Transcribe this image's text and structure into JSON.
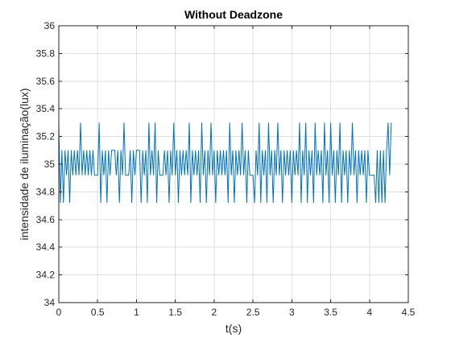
{
  "chart_data": {
    "type": "line",
    "title": "Without Deadzone",
    "xlabel": "t(s)",
    "ylabel": "intensidade de iluminação(lux)",
    "xlim": [
      0,
      4.5
    ],
    "ylim": [
      34,
      36
    ],
    "xticks": [
      0,
      0.5,
      1,
      1.5,
      2,
      2.5,
      3,
      3.5,
      4,
      4.5
    ],
    "yticks": [
      34,
      34.2,
      34.4,
      34.6,
      34.8,
      35,
      35.2,
      35.4,
      35.6,
      35.8,
      36
    ],
    "xtick_labels": [
      "0",
      "0.5",
      "1",
      "1.5",
      "2",
      "2.5",
      "3",
      "3.5",
      "4",
      "4.5"
    ],
    "ytick_labels": [
      "34",
      "34.2",
      "34.4",
      "34.6",
      "34.8",
      "35",
      "35.2",
      "35.4",
      "35.6",
      "35.8",
      "36"
    ],
    "grid": true,
    "colors": {
      "line": "#0072BD",
      "grid": "#DFDFDF",
      "axis": "#262626"
    },
    "series": [
      {
        "x": [
          0,
          0.02,
          0.04,
          0.06,
          0.08,
          0.1,
          0.12,
          0.14,
          0.16,
          0.18,
          0.2,
          0.22,
          0.24,
          0.26,
          0.28,
          0.3,
          0.32,
          0.34,
          0.36,
          0.38,
          0.4,
          0.42,
          0.44,
          0.46,
          0.48,
          0.5,
          0.52,
          0.54,
          0.56,
          0.58,
          0.6,
          0.62,
          0.64,
          0.66,
          0.68,
          0.7,
          0.72,
          0.74,
          0.76,
          0.78,
          0.8,
          0.82,
          0.84,
          0.86,
          0.88,
          0.9,
          0.92,
          0.94,
          0.96,
          0.98,
          1,
          1.02,
          1.04,
          1.06,
          1.08,
          1.1,
          1.12,
          1.14,
          1.16,
          1.18,
          1.2,
          1.22,
          1.24,
          1.26,
          1.28,
          1.3,
          1.32,
          1.34,
          1.36,
          1.38,
          1.4,
          1.42,
          1.44,
          1.46,
          1.48,
          1.5,
          1.52,
          1.54,
          1.56,
          1.58,
          1.6,
          1.62,
          1.64,
          1.66,
          1.68,
          1.7,
          1.72,
          1.74,
          1.76,
          1.78,
          1.8,
          1.82,
          1.84,
          1.86,
          1.88,
          1.9,
          1.92,
          1.94,
          1.96,
          1.98,
          2,
          2.02,
          2.04,
          2.06,
          2.08,
          2.1,
          2.12,
          2.14,
          2.16,
          2.18,
          2.2,
          2.22,
          2.24,
          2.26,
          2.28,
          2.3,
          2.32,
          2.34,
          2.36,
          2.38,
          2.4,
          2.42,
          2.44,
          2.46,
          2.48,
          2.5,
          2.52,
          2.54,
          2.56,
          2.58,
          2.6,
          2.62,
          2.64,
          2.66,
          2.68,
          2.7,
          2.72,
          2.74,
          2.76,
          2.78,
          2.8,
          2.82,
          2.84,
          2.86,
          2.88,
          2.9,
          2.92,
          2.94,
          2.96,
          2.98,
          3,
          3.02,
          3.04,
          3.06,
          3.08,
          3.1,
          3.12,
          3.14,
          3.16,
          3.18,
          3.2,
          3.22,
          3.24,
          3.26,
          3.28,
          3.3,
          3.32,
          3.34,
          3.36,
          3.38,
          3.4,
          3.42,
          3.44,
          3.46,
          3.48,
          3.5,
          3.52,
          3.54,
          3.56,
          3.58,
          3.6,
          3.62,
          3.64,
          3.66,
          3.68,
          3.7,
          3.72,
          3.74,
          3.76,
          3.78,
          3.8,
          3.82,
          3.84,
          3.86,
          3.88,
          3.9,
          3.92,
          3.94,
          3.96,
          3.98,
          4,
          4.02,
          4.04,
          4.06,
          4.08,
          4.1,
          4.12,
          4.14,
          4.16,
          4.18,
          4.2,
          4.22,
          4.24,
          4.26,
          4.28
        ],
        "y": [
          35.3,
          34.72,
          35.1,
          34.72,
          35.1,
          34.92,
          35.1,
          34.72,
          35.1,
          34.92,
          35.1,
          34.92,
          35.1,
          34.92,
          35.3,
          34.92,
          35.1,
          34.92,
          35.1,
          34.92,
          35.1,
          34.92,
          35.1,
          34.92,
          34.92,
          34.92,
          35.3,
          34.72,
          35.1,
          34.92,
          35.1,
          34.72,
          35.1,
          34.92,
          35.1,
          35.1,
          35.1,
          34.92,
          35.1,
          34.72,
          35.1,
          34.92,
          35.3,
          34.92,
          34.92,
          34.92,
          35.1,
          34.72,
          35.1,
          34.92,
          35.1,
          35.1,
          35.1,
          34.72,
          35.1,
          34.92,
          35.1,
          34.72,
          35.3,
          34.92,
          35.1,
          34.92,
          35.3,
          34.72,
          35.1,
          34.92,
          34.92,
          34.92,
          35.1,
          34.92,
          35.1,
          34.72,
          35.1,
          34.92,
          35.3,
          34.92,
          35.1,
          34.72,
          35.1,
          34.92,
          35.1,
          34.92,
          35.1,
          34.92,
          35.3,
          34.72,
          35.1,
          34.92,
          35.1,
          34.92,
          35.1,
          34.72,
          35.3,
          34.92,
          35.1,
          34.72,
          35.1,
          34.92,
          35.3,
          34.92,
          35.1,
          34.72,
          35.1,
          34.92,
          35.1,
          34.92,
          35.1,
          34.92,
          35.1,
          34.72,
          35.3,
          34.92,
          35.1,
          34.72,
          35.1,
          34.92,
          35.1,
          34.92,
          35.3,
          34.92,
          35.1,
          34.72,
          35.1,
          34.92,
          34.92,
          34.92,
          34.72,
          35.1,
          34.92,
          35.3,
          34.72,
          35.1,
          34.92,
          35.1,
          34.72,
          35.3,
          34.92,
          35.1,
          34.72,
          35.1,
          34.92,
          35.3,
          34.92,
          35.1,
          34.72,
          35.1,
          34.92,
          35.1,
          34.92,
          35.1,
          34.72,
          35.1,
          34.92,
          35.1,
          34.92,
          35.3,
          34.72,
          35.1,
          34.92,
          35.3,
          34.72,
          35.1,
          34.92,
          35.1,
          34.72,
          35.3,
          34.92,
          35.1,
          34.92,
          35.1,
          34.72,
          35.3,
          34.92,
          35.1,
          34.72,
          35.3,
          34.92,
          35.1,
          34.72,
          35.1,
          34.92,
          35.3,
          34.72,
          35.1,
          34.92,
          35.1,
          34.72,
          35.1,
          34.92,
          35.3,
          34.92,
          35.1,
          34.72,
          35.1,
          34.92,
          35.1,
          34.92,
          35.1,
          34.72,
          35.1,
          34.92,
          34.92,
          34.92,
          34.92,
          34.72,
          35.1,
          34.72,
          35.1,
          34.72,
          35.1,
          34.72,
          35.1,
          35.3,
          34.92,
          35.3
        ]
      }
    ]
  }
}
